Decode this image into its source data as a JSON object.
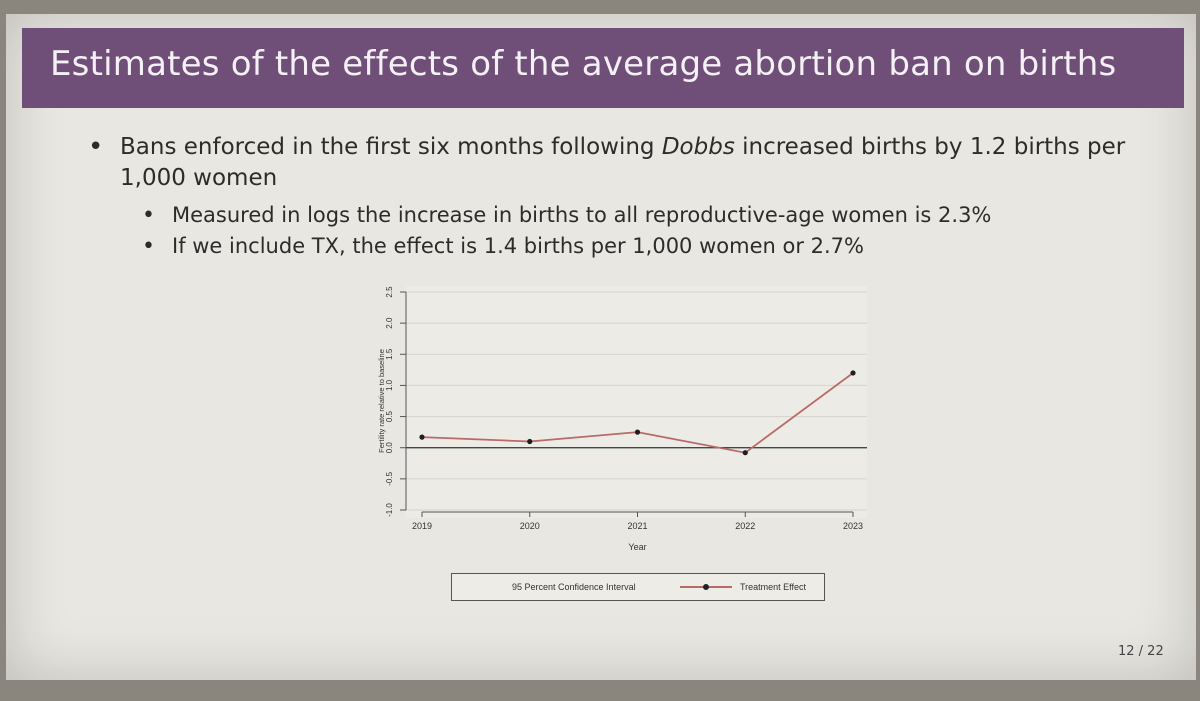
{
  "slide": {
    "title": "Estimates of the effects of the average abortion ban on births",
    "bullet1_pre": "Bans enforced in the first six months following ",
    "bullet1_em": "Dobbs",
    "bullet1_post": " increased births by 1.2 births per 1,000 women",
    "sub_bullets": [
      "Measured in logs the increase in births to all reproductive-age women is 2.3%",
      "If we include TX, the effect is 1.4 births per 1,000 women or 2.7%"
    ],
    "page_number": "12 / 22"
  },
  "chart_data": {
    "type": "line",
    "xlabel": "Year",
    "ylabel": "Fertility rate relative to baseline",
    "x": [
      2019,
      2020,
      2021,
      2022,
      2023
    ],
    "ylim": [
      -1.0,
      2.5
    ],
    "yticks": [
      "-1.0",
      "-0.5",
      "0.0",
      "0.5",
      "1.0",
      "1.5",
      "2.0",
      "2.5"
    ],
    "series": [
      {
        "name": "Treatment Effect",
        "values": [
          0.17,
          0.1,
          0.25,
          -0.08,
          1.2
        ],
        "color": "#b96a66"
      }
    ],
    "confidence_interval_label": "95 Percent Confidence Interval",
    "reference_line": 0.0,
    "grid": true,
    "legend": "bottom"
  }
}
